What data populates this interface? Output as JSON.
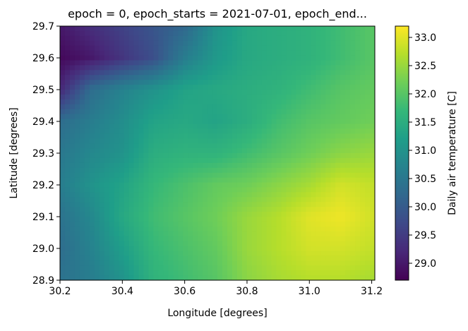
{
  "chart_data": {
    "type": "heatmap",
    "title": "epoch = 0, epoch_starts = 2021-07-01, epoch_end...",
    "xlabel": "Longitude [degrees]",
    "ylabel": "Latitude [degrees]",
    "xlim": [
      30.2,
      31.21
    ],
    "ylim": [
      28.9,
      29.7
    ],
    "xticks": [
      30.2,
      30.4,
      30.6,
      30.8,
      31.0,
      31.2
    ],
    "xtick_labels": [
      "30.2",
      "30.4",
      "30.6",
      "30.8",
      "31.0",
      "31.2"
    ],
    "yticks": [
      28.9,
      29.0,
      29.1,
      29.2,
      29.3,
      29.4,
      29.5,
      29.6,
      29.7
    ],
    "ytick_labels": [
      "28.9",
      "29.0",
      "29.1",
      "29.2",
      "29.3",
      "29.4",
      "29.5",
      "29.6",
      "29.7"
    ],
    "colorbar": {
      "label": "Daily air temperature [C]",
      "range": [
        28.7,
        33.2
      ],
      "ticks": [
        29.0,
        29.5,
        30.0,
        30.5,
        31.0,
        31.5,
        32.0,
        32.5,
        33.0
      ],
      "tick_labels": [
        "29.0",
        "29.5",
        "30.0",
        "30.5",
        "31.0",
        "31.5",
        "32.0",
        "32.5",
        "33.0"
      ],
      "colormap": "viridis",
      "colormap_stops": [
        "#440154",
        "#482878",
        "#3e4989",
        "#31688e",
        "#26828e",
        "#1f9e89",
        "#35b779",
        "#6ece58",
        "#b5de2b",
        "#fde725"
      ]
    },
    "grid": false,
    "field_description_points": {
      "lon": [
        30.2,
        30.3,
        30.4,
        30.5,
        30.6,
        30.7,
        30.8,
        30.9,
        31.0,
        31.1,
        31.2
      ],
      "lat": [
        29.7,
        29.6,
        29.5,
        29.4,
        29.3,
        29.2,
        29.1,
        29.0,
        28.9
      ],
      "values": [
        [
          29.0,
          29.3,
          29.6,
          29.9,
          30.2,
          31.0,
          31.4,
          31.5,
          31.6,
          31.8,
          32.0
        ],
        [
          28.8,
          29.0,
          29.4,
          29.8,
          30.6,
          31.1,
          31.4,
          31.5,
          31.6,
          31.8,
          32.0
        ],
        [
          29.2,
          30.3,
          30.7,
          31.0,
          31.3,
          31.4,
          31.5,
          31.6,
          31.8,
          32.0,
          32.1
        ],
        [
          30.3,
          30.6,
          30.9,
          31.3,
          31.4,
          31.3,
          31.5,
          31.8,
          32.0,
          32.1,
          32.2
        ],
        [
          30.5,
          30.8,
          31.0,
          31.5,
          31.6,
          31.6,
          31.8,
          32.0,
          32.2,
          32.4,
          32.5
        ],
        [
          30.6,
          31.0,
          31.3,
          31.7,
          31.9,
          32.1,
          32.2,
          32.4,
          32.6,
          32.9,
          32.8
        ],
        [
          30.4,
          30.8,
          31.4,
          31.8,
          32.0,
          32.2,
          32.5,
          32.7,
          33.0,
          33.1,
          32.9
        ],
        [
          30.3,
          30.7,
          31.2,
          31.7,
          31.9,
          32.1,
          32.5,
          32.7,
          32.9,
          32.9,
          32.8
        ],
        [
          30.4,
          30.6,
          31.0,
          31.6,
          31.8,
          32.0,
          32.4,
          32.6,
          32.7,
          32.7,
          32.6
        ]
      ]
    }
  }
}
